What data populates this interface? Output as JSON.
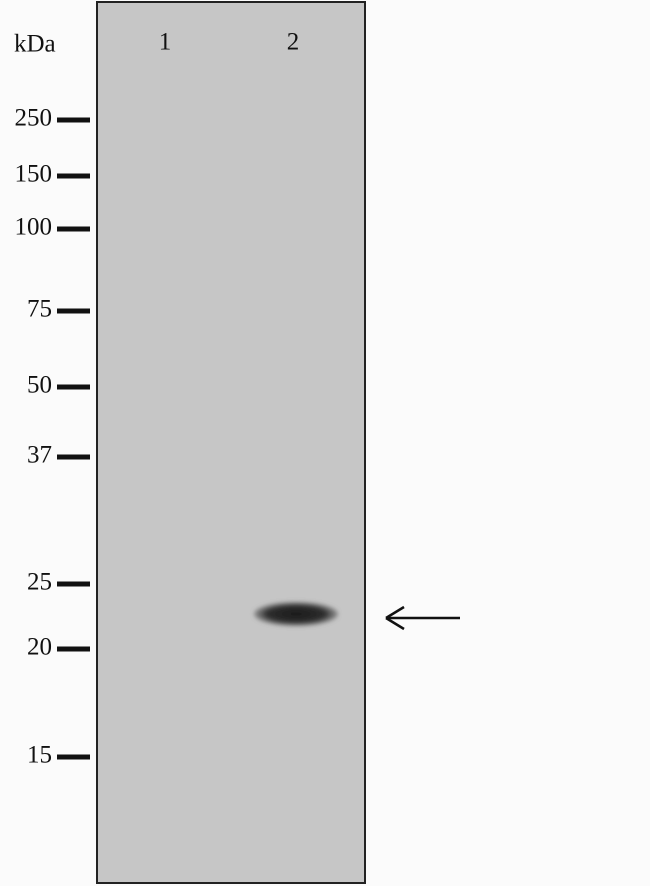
{
  "unit_label": "kDa",
  "lanes": [
    "1",
    "2"
  ],
  "markers": [
    "250",
    "150",
    "100",
    "75",
    "50",
    "37",
    "25",
    "20",
    "15"
  ]
}
